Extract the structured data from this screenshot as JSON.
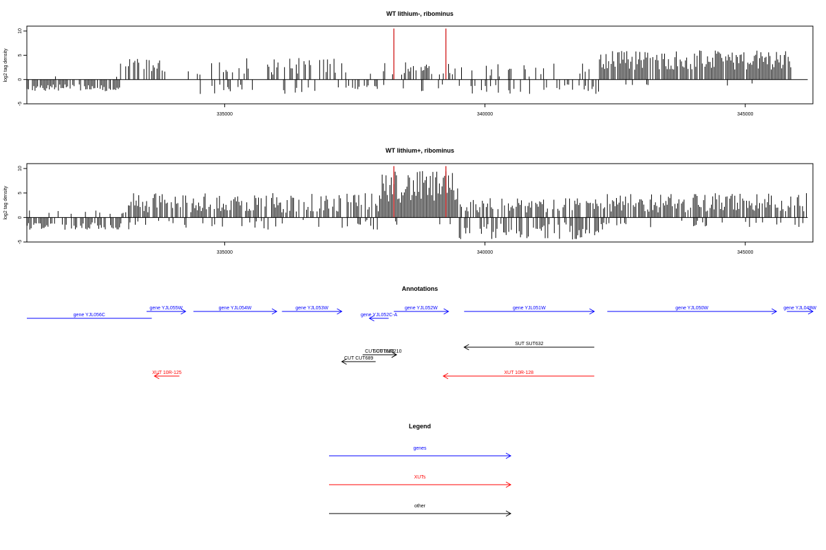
{
  "colors": {
    "gene": "#0000ff",
    "xut": "#ff0000",
    "other": "#000000",
    "peak": "#cc0000"
  },
  "chart_data": [
    {
      "type": "bar",
      "id": "p1",
      "title": "WT lithium-, ribominus",
      "ylabel": "log2 tag density",
      "xlim": [
        331200,
        346300
      ],
      "ylim": [
        -5,
        11
      ],
      "yticks": [
        -5,
        0,
        5,
        10
      ],
      "xticks": [
        335000,
        340000,
        345000
      ],
      "x_domain": [
        331200,
        346200
      ],
      "step": 25,
      "regions": [
        {
          "from": 331200,
          "to": 333000,
          "lo": 0.5,
          "hi": 1.0,
          "dens": 0.06,
          "neg": 0.8,
          "nlo": 1.0,
          "nhi": 2.5
        },
        {
          "from": 333000,
          "to": 333900,
          "lo": 1.5,
          "hi": 4.5,
          "dens": 0.55,
          "neg": 0.1,
          "nlo": 1.0,
          "nhi": 2.0
        },
        {
          "from": 334300,
          "to": 337300,
          "lo": 1.0,
          "hi": 4.5,
          "dens": 0.4,
          "neg": 0.12,
          "nlo": 1.0,
          "nhi": 3.0
        },
        {
          "from": 337300,
          "to": 338000,
          "lo": 0.5,
          "hi": 1.5,
          "dens": 0.08,
          "neg": 0.5,
          "nlo": 1.0,
          "nhi": 2.0
        },
        {
          "from": 338000,
          "to": 339500,
          "lo": 1.0,
          "hi": 4.0,
          "dens": 0.4,
          "neg": 0.1,
          "nlo": 1.0,
          "nhi": 2.5
        },
        {
          "from": 339500,
          "to": 342200,
          "lo": 0.5,
          "hi": 3.5,
          "dens": 0.15,
          "neg": 0.35,
          "nlo": 1.0,
          "nhi": 3.0
        },
        {
          "from": 342200,
          "to": 345900,
          "lo": 2.0,
          "hi": 6.0,
          "dens": 0.9,
          "neg": 0.03,
          "nlo": 0.5,
          "nhi": 1.5
        }
      ],
      "peaks": [
        {
          "x": 338250,
          "y": 10.5
        },
        {
          "x": 339250,
          "y": 10.5
        }
      ]
    },
    {
      "type": "bar",
      "id": "p2",
      "title": "WT lithium+, ribominus",
      "ylabel": "log2 tag density",
      "xlim": [
        331200,
        346300
      ],
      "ylim": [
        -5,
        11
      ],
      "yticks": [
        -5,
        0,
        5,
        10
      ],
      "xticks": [
        335000,
        340000,
        345000
      ],
      "x_domain": [
        331200,
        346200
      ],
      "step": 25,
      "regions": [
        {
          "from": 331200,
          "to": 333100,
          "lo": 0.5,
          "hi": 1.5,
          "dens": 0.12,
          "neg": 0.6,
          "nlo": 1.0,
          "nhi": 2.5
        },
        {
          "from": 333100,
          "to": 338000,
          "lo": 1.0,
          "hi": 5.0,
          "dens": 0.75,
          "neg": 0.15,
          "nlo": 0.5,
          "nhi": 2.5
        },
        {
          "from": 338000,
          "to": 339500,
          "lo": 3.0,
          "hi": 9.5,
          "dens": 1.0,
          "neg": 0.05,
          "nlo": 0.5,
          "nhi": 1.5
        },
        {
          "from": 339500,
          "to": 342300,
          "lo": 1.0,
          "hi": 4.0,
          "dens": 0.75,
          "neg": 0.55,
          "nlo": 1.0,
          "nhi": 4.5
        },
        {
          "from": 342300,
          "to": 346200,
          "lo": 1.0,
          "hi": 5.0,
          "dens": 0.8,
          "neg": 0.15,
          "nlo": 0.5,
          "nhi": 2.0
        }
      ],
      "peaks": [
        {
          "x": 338250,
          "y": 10.5
        },
        {
          "x": 339250,
          "y": 10.5
        }
      ]
    }
  ],
  "annotations": {
    "title": "Annotations",
    "xlim": [
      331200,
      346300
    ],
    "features": [
      {
        "label": "gene YJL056C",
        "type": "gene",
        "start": 331200,
        "end": 333600,
        "strand": "none",
        "row": 0
      },
      {
        "label": "gene YJL055W",
        "type": "gene",
        "start": 333500,
        "end": 334250,
        "strand": "+",
        "row": 1
      },
      {
        "label": "gene YJL054W",
        "type": "gene",
        "start": 334400,
        "end": 336000,
        "strand": "+",
        "row": 1
      },
      {
        "label": "gene YJL053W",
        "type": "gene",
        "start": 336100,
        "end": 337250,
        "strand": "+",
        "row": 1
      },
      {
        "label": "gene YJL052C-A",
        "type": "gene",
        "start": 337780,
        "end": 338150,
        "strand": "-",
        "row": 2
      },
      {
        "label": "gene YJL052W",
        "type": "gene",
        "start": 338250,
        "end": 339300,
        "strand": "+",
        "row": 1
      },
      {
        "label": "gene YJL051W",
        "type": "gene",
        "start": 339600,
        "end": 342100,
        "strand": "+",
        "row": 1
      },
      {
        "label": "gene YJL050W",
        "type": "gene",
        "start": 342350,
        "end": 345600,
        "strand": "+",
        "row": 1
      },
      {
        "label": "gene YJL049W",
        "type": "gene",
        "start": 345800,
        "end": 346300,
        "strand": "+",
        "row": 1
      },
      {
        "label": "SUT SUT632",
        "type": "other",
        "start": 339600,
        "end": 342100,
        "strand": "-",
        "row": 3
      },
      {
        "label": "CUT CUT688",
        "type": "other",
        "start": 337650,
        "end": 338300,
        "strand": "+",
        "row": 4
      },
      {
        "label": "SUT SUT210",
        "type": "other",
        "start": 337950,
        "end": 338300,
        "strand": "+",
        "row": 5
      },
      {
        "label": "CUT CUT689",
        "type": "other",
        "start": 337250,
        "end": 337900,
        "strand": "-",
        "row": 6
      },
      {
        "label": "XUT 10R-125",
        "type": "xut",
        "start": 333650,
        "end": 334130,
        "strand": "-",
        "row": 7
      },
      {
        "label": "XUT 10R-128",
        "type": "xut",
        "start": 339200,
        "end": 342100,
        "strand": "-",
        "row": 8
      }
    ]
  },
  "legend": {
    "title": "Legend",
    "items": [
      {
        "label": "genes",
        "type": "gene"
      },
      {
        "label": "XUTs",
        "type": "xut"
      },
      {
        "label": "other",
        "type": "other"
      }
    ]
  }
}
